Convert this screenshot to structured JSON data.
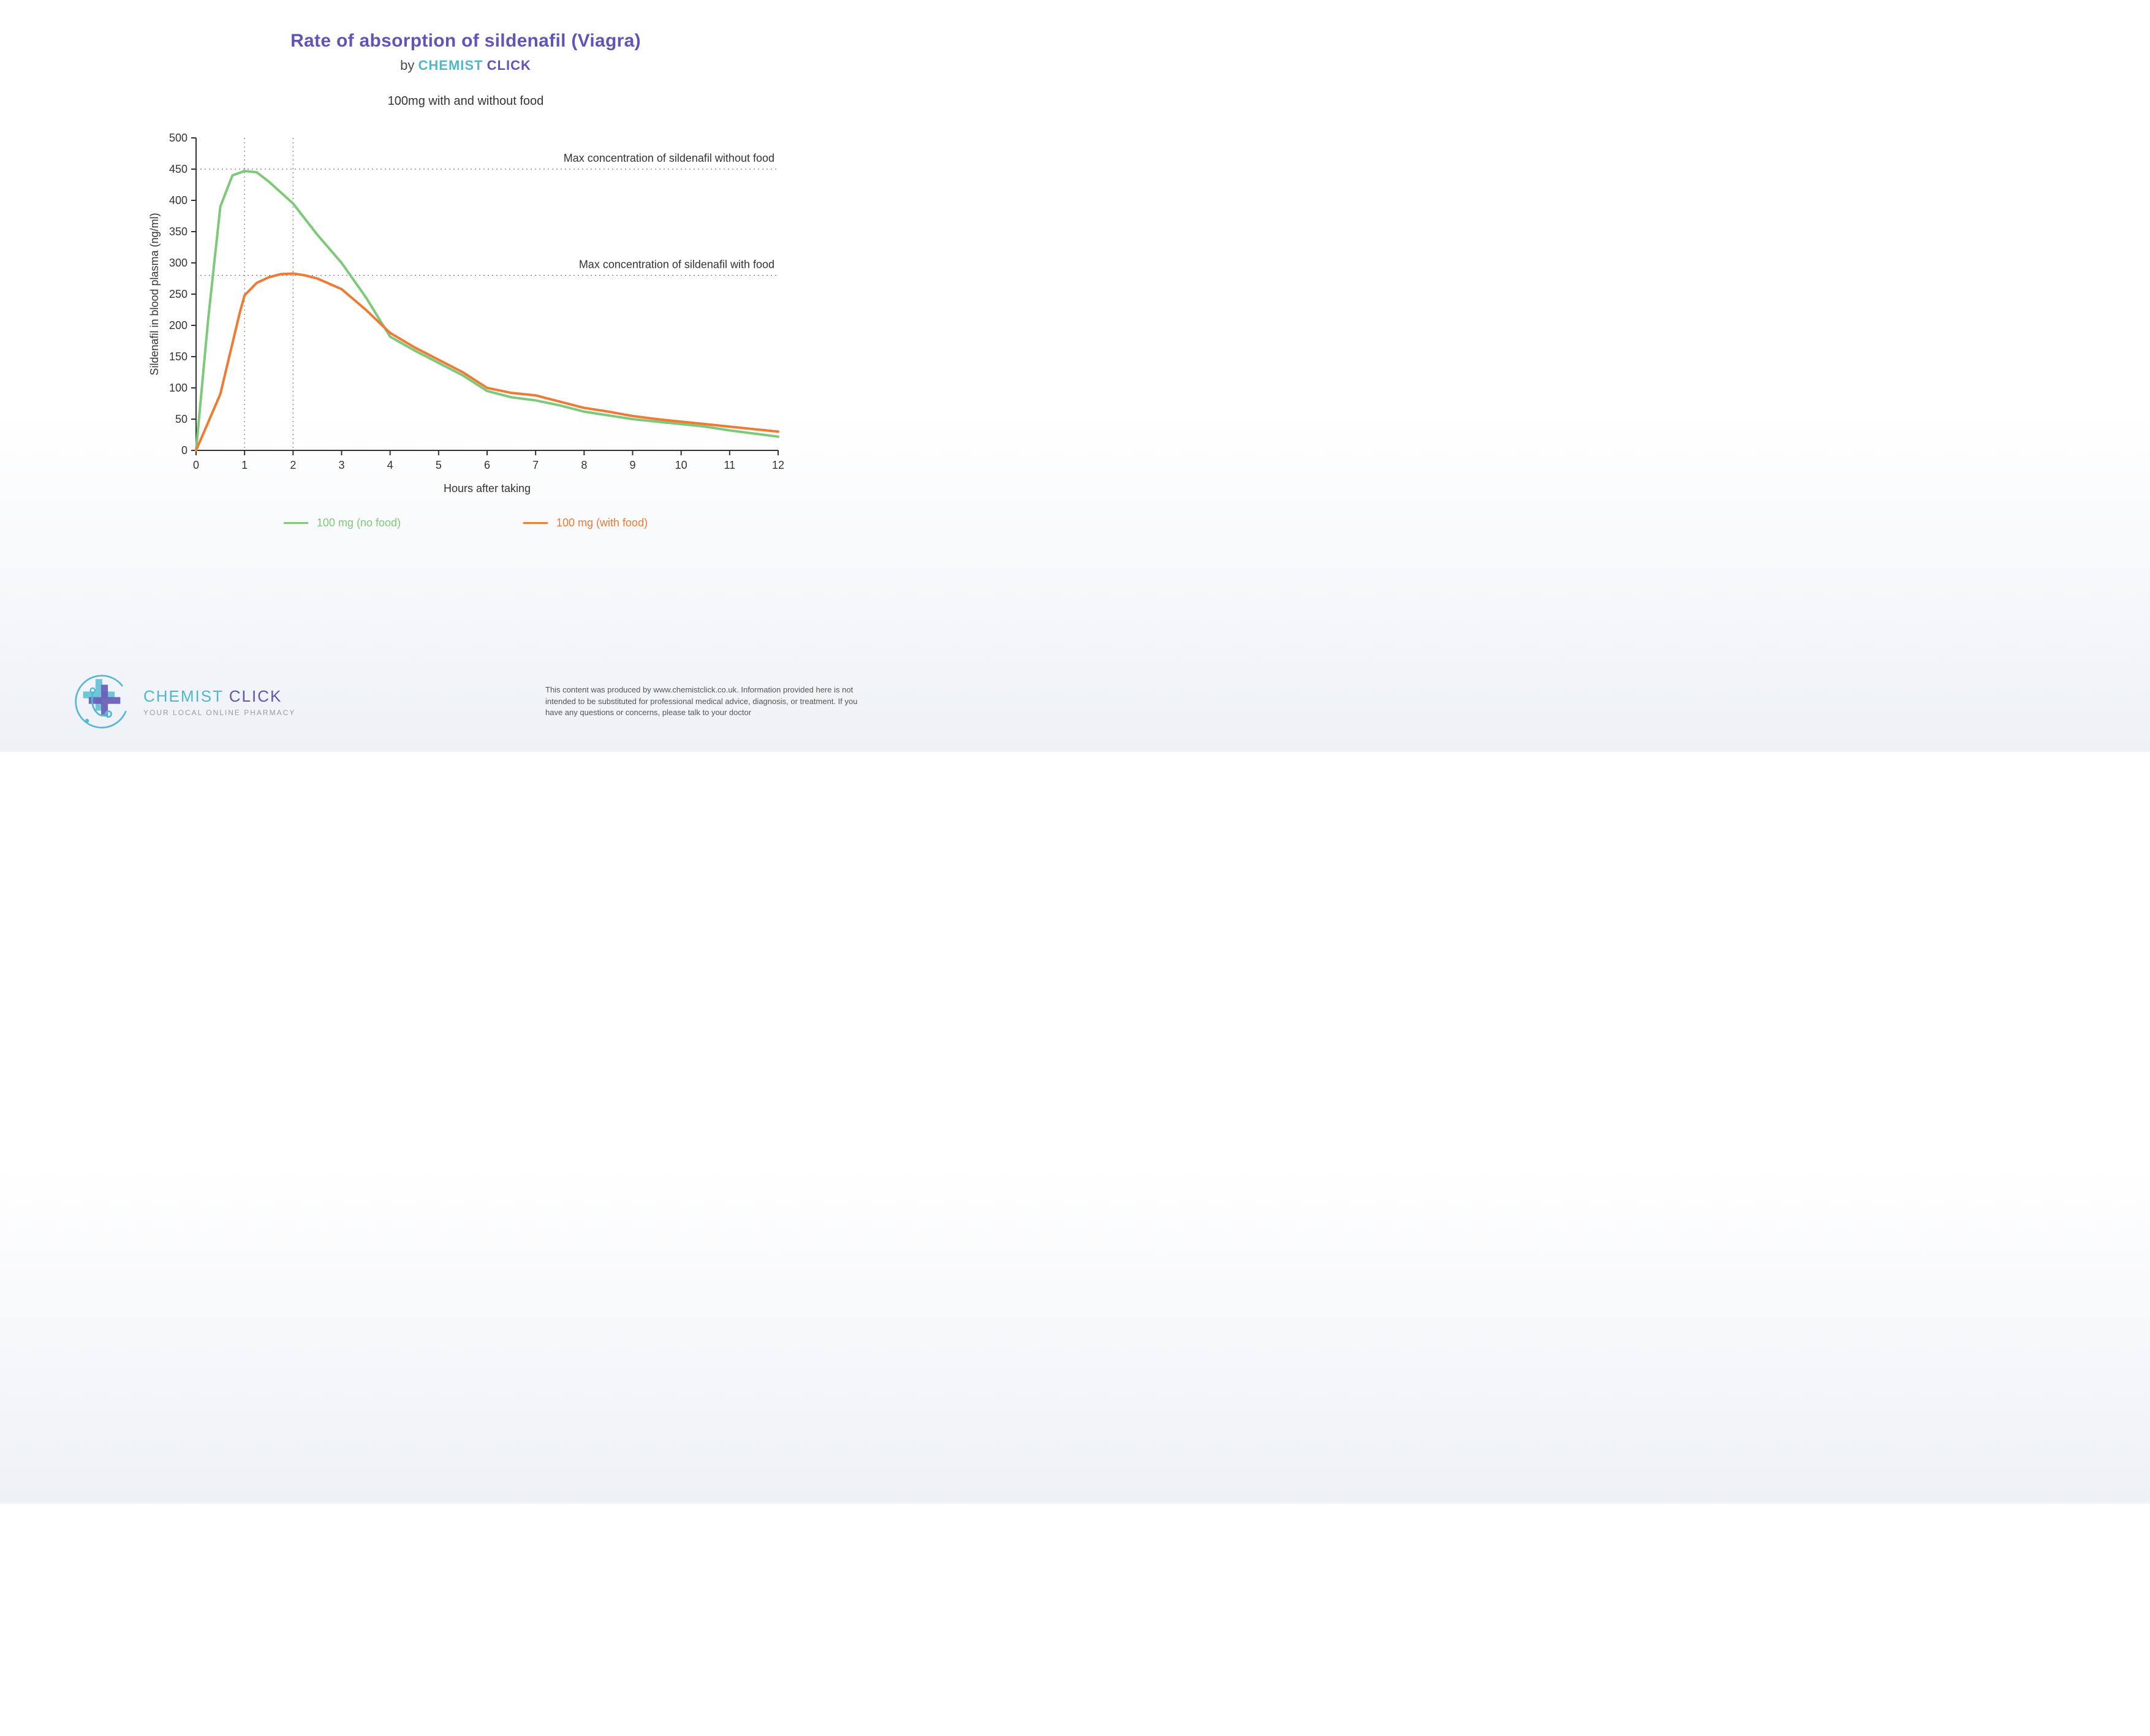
{
  "title": "Rate of absorption of sildenafil (Viagra)",
  "byline_prefix": "by ",
  "brand_word1": "CHEMIST",
  "brand_word2": "CLICK",
  "subtitle": "100mg with and without food",
  "chart": {
    "type": "line",
    "background_color": "#ffffff",
    "ylabel": "Sildenafil in blood plasma (ng/ml)",
    "xlabel": "Hours after taking",
    "xlim": [
      0,
      12
    ],
    "ylim": [
      0,
      500
    ],
    "xtick_step": 1,
    "ytick_step": 50,
    "x_ticks": [
      "0",
      "1",
      "2",
      "3",
      "4",
      "5",
      "6",
      "7",
      "8",
      "9",
      "10",
      "11",
      "12"
    ],
    "y_ticks": [
      "0",
      "50",
      "100",
      "150",
      "200",
      "250",
      "300",
      "350",
      "400",
      "450",
      "500"
    ],
    "axis_color": "#333333",
    "tick_font_size": 18,
    "label_font_size": 18,
    "grid_vertical_at": [
      1,
      2
    ],
    "grid_color": "#777777",
    "grid_dash": "2,5",
    "refs": [
      {
        "y": 450,
        "label": "Max concentration of sildenafil without food",
        "color": "#777777"
      },
      {
        "y": 280,
        "label": "Max concentration of sildenafil with food",
        "color": "#777777"
      }
    ],
    "series": [
      {
        "name": "100 mg (no food)",
        "color": "#7dc97a",
        "line_width": 4,
        "data": [
          [
            0,
            0
          ],
          [
            0.25,
            210
          ],
          [
            0.5,
            390
          ],
          [
            0.75,
            440
          ],
          [
            1.0,
            447
          ],
          [
            1.25,
            445
          ],
          [
            1.5,
            430
          ],
          [
            2.0,
            395
          ],
          [
            2.5,
            345
          ],
          [
            3.0,
            300
          ],
          [
            3.5,
            245
          ],
          [
            4.0,
            182
          ],
          [
            4.5,
            160
          ],
          [
            5.0,
            140
          ],
          [
            5.5,
            120
          ],
          [
            6.0,
            95
          ],
          [
            6.5,
            85
          ],
          [
            7.0,
            80
          ],
          [
            7.5,
            72
          ],
          [
            8.0,
            62
          ],
          [
            8.5,
            56
          ],
          [
            9.0,
            50
          ],
          [
            9.5,
            46
          ],
          [
            10.0,
            42
          ],
          [
            10.5,
            38
          ],
          [
            11.0,
            32
          ],
          [
            11.5,
            27
          ],
          [
            12.0,
            22
          ]
        ]
      },
      {
        "name": "100 mg (with food)",
        "color": "#ee7a33",
        "line_width": 4,
        "data": [
          [
            0,
            0
          ],
          [
            0.5,
            90
          ],
          [
            0.9,
            220
          ],
          [
            1.0,
            248
          ],
          [
            1.25,
            268
          ],
          [
            1.5,
            277
          ],
          [
            1.75,
            282
          ],
          [
            2.0,
            283
          ],
          [
            2.25,
            280
          ],
          [
            2.5,
            275
          ],
          [
            3.0,
            258
          ],
          [
            3.5,
            225
          ],
          [
            4.0,
            188
          ],
          [
            4.5,
            165
          ],
          [
            5.0,
            145
          ],
          [
            5.5,
            125
          ],
          [
            6.0,
            100
          ],
          [
            6.5,
            92
          ],
          [
            7.0,
            88
          ],
          [
            7.5,
            78
          ],
          [
            8.0,
            68
          ],
          [
            8.5,
            62
          ],
          [
            9.0,
            55
          ],
          [
            9.5,
            50
          ],
          [
            10.0,
            46
          ],
          [
            10.5,
            42
          ],
          [
            11.0,
            38
          ],
          [
            11.5,
            34
          ],
          [
            12.0,
            30
          ]
        ]
      }
    ]
  },
  "legend": {
    "item1": "100 mg (no food)",
    "item1_color": "#7dc97a",
    "item2": "100 mg (with food)",
    "item2_color": "#ee7a33"
  },
  "footer": {
    "brand_sub": "YOUR LOCAL ONLINE PHARMACY",
    "disclaimer": "This content was produced by www.chemistclick.co.uk. Information provided here is not intended to be substituted for professional medical advice, diagnosis, or treatment. If you have any questions or concerns, please talk to your doctor"
  },
  "logo": {
    "circle_stroke": "#5bb7d6",
    "cross_back": "#6fc6d6",
    "cross_front": "#6a60b8",
    "stetho": "#53b7d8"
  }
}
